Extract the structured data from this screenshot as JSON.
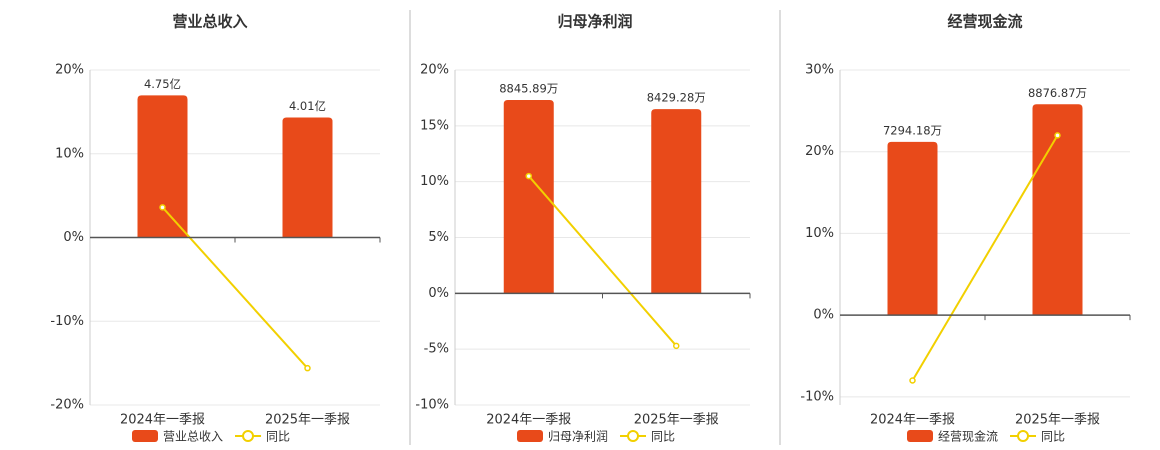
{
  "chart_data": [
    {
      "type": "bar",
      "title": "营业总收入",
      "categories": [
        "2024年一季报",
        "2025年一季报"
      ],
      "series": [
        {
          "name": "营业总收入",
          "color": "#e84a1a",
          "axis": "y2",
          "values": [
            4.75,
            4.01
          ],
          "value_labels": [
            "4.75亿",
            "4.01亿"
          ]
        },
        {
          "name": "同比",
          "type": "line",
          "color": "#f2d000",
          "values": [
            3.6,
            -15.6
          ]
        }
      ],
      "ylim": [
        -20,
        20
      ],
      "yticks": [
        {
          "value": -20,
          "label": "-20%"
        },
        {
          "value": -10,
          "label": "-10%"
        },
        {
          "value": 0,
          "label": "0%"
        },
        {
          "value": 10,
          "label": "10%"
        },
        {
          "value": 20,
          "label": "20%"
        }
      ],
      "y2lim": [
        -5.6,
        5.6
      ],
      "grid": true
    },
    {
      "type": "bar",
      "title": "归母净利润",
      "categories": [
        "2024年一季报",
        "2025年一季报"
      ],
      "series": [
        {
          "name": "归母净利润",
          "color": "#e84a1a",
          "axis": "y2",
          "values": [
            8845.89,
            8429.28
          ],
          "value_labels": [
            "8845.89万",
            "8429.28万"
          ]
        },
        {
          "name": "同比",
          "type": "line",
          "color": "#f2d000",
          "values": [
            10.5,
            -4.7
          ]
        }
      ],
      "ylim": [
        -10,
        20
      ],
      "yticks": [
        {
          "value": -10,
          "label": "-10%"
        },
        {
          "value": -5,
          "label": "-5%"
        },
        {
          "value": 0,
          "label": "0%"
        },
        {
          "value": 5,
          "label": "5%"
        },
        {
          "value": 10,
          "label": "10%"
        },
        {
          "value": 15,
          "label": "15%"
        },
        {
          "value": 20,
          "label": "20%"
        }
      ],
      "y2lim": [
        -5110,
        10220
      ],
      "grid": true
    },
    {
      "type": "bar",
      "title": "经营现金流",
      "categories": [
        "2024年一季报",
        "2025年一季报"
      ],
      "series": [
        {
          "name": "经营现金流",
          "color": "#e84a1a",
          "axis": "y2",
          "values": [
            7294.18,
            8876.87
          ],
          "value_labels": [
            "7294.18万",
            "8876.87万"
          ]
        },
        {
          "name": "同比",
          "type": "line",
          "color": "#f2d000",
          "values": [
            -8.0,
            22.0
          ]
        }
      ],
      "ylim": [
        -11,
        30
      ],
      "yticks": [
        {
          "value": -10,
          "label": "-10%"
        },
        {
          "value": 0,
          "label": "0%"
        },
        {
          "value": 10,
          "label": "10%"
        },
        {
          "value": 20,
          "label": "20%"
        },
        {
          "value": 30,
          "label": "30%"
        }
      ],
      "y2lim": [
        -3784,
        10320
      ],
      "grid": true
    }
  ]
}
